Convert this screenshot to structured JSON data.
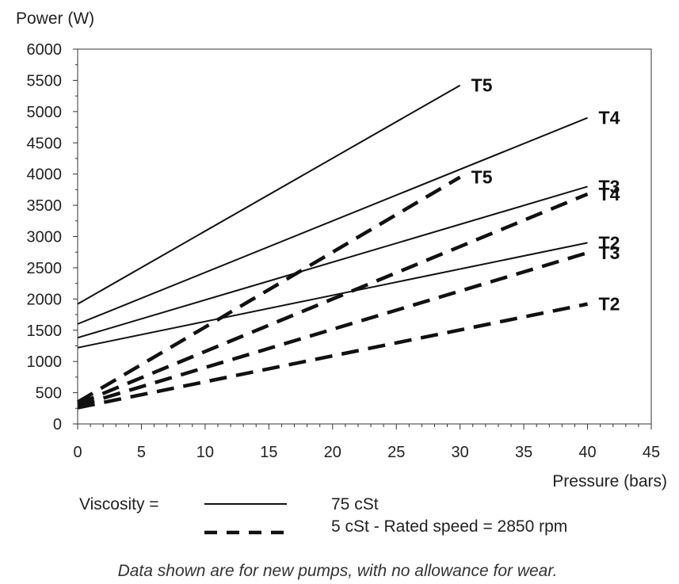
{
  "chart_data": {
    "type": "line",
    "ylabel": "Power  (W)",
    "xlabel": "Pressure  (bars)",
    "xlim": [
      0,
      45
    ],
    "ylim": [
      0,
      6000
    ],
    "x_ticks": [
      "0",
      "5",
      "10",
      "15",
      "20",
      "25",
      "30",
      "35",
      "40",
      "45"
    ],
    "y_ticks": [
      "0",
      "500",
      "1000",
      "1500",
      "2000",
      "2500",
      "3000",
      "3500",
      "4000",
      "4500",
      "5000",
      "5500",
      "6000"
    ],
    "grid": false,
    "series": [
      {
        "name": "T5",
        "style": "solid",
        "x": [
          0,
          30
        ],
        "y": [
          1920,
          5420
        ]
      },
      {
        "name": "T4",
        "style": "solid",
        "x": [
          0,
          40
        ],
        "y": [
          1600,
          4900
        ]
      },
      {
        "name": "T3",
        "style": "solid",
        "x": [
          0,
          40
        ],
        "y": [
          1380,
          3800
        ]
      },
      {
        "name": "T2",
        "style": "solid",
        "x": [
          0,
          40
        ],
        "y": [
          1220,
          2900
        ]
      },
      {
        "name": "T5",
        "style": "dashed",
        "x": [
          0,
          30
        ],
        "y": [
          350,
          3950
        ]
      },
      {
        "name": "T4",
        "style": "dashed",
        "x": [
          0,
          40
        ],
        "y": [
          320,
          3680
        ]
      },
      {
        "name": "T3",
        "style": "dashed",
        "x": [
          0,
          40
        ],
        "y": [
          290,
          2740
        ]
      },
      {
        "name": "T2",
        "style": "dashed",
        "x": [
          0,
          40
        ],
        "y": [
          260,
          1920
        ]
      }
    ],
    "legend": {
      "label": "Viscosity   =",
      "solid_text": "75 cSt",
      "dashed_text": "5 cSt   -   Rated speed = 2850 rpm"
    },
    "footnote": "Data shown are for new pumps, with no allowance for wear."
  }
}
